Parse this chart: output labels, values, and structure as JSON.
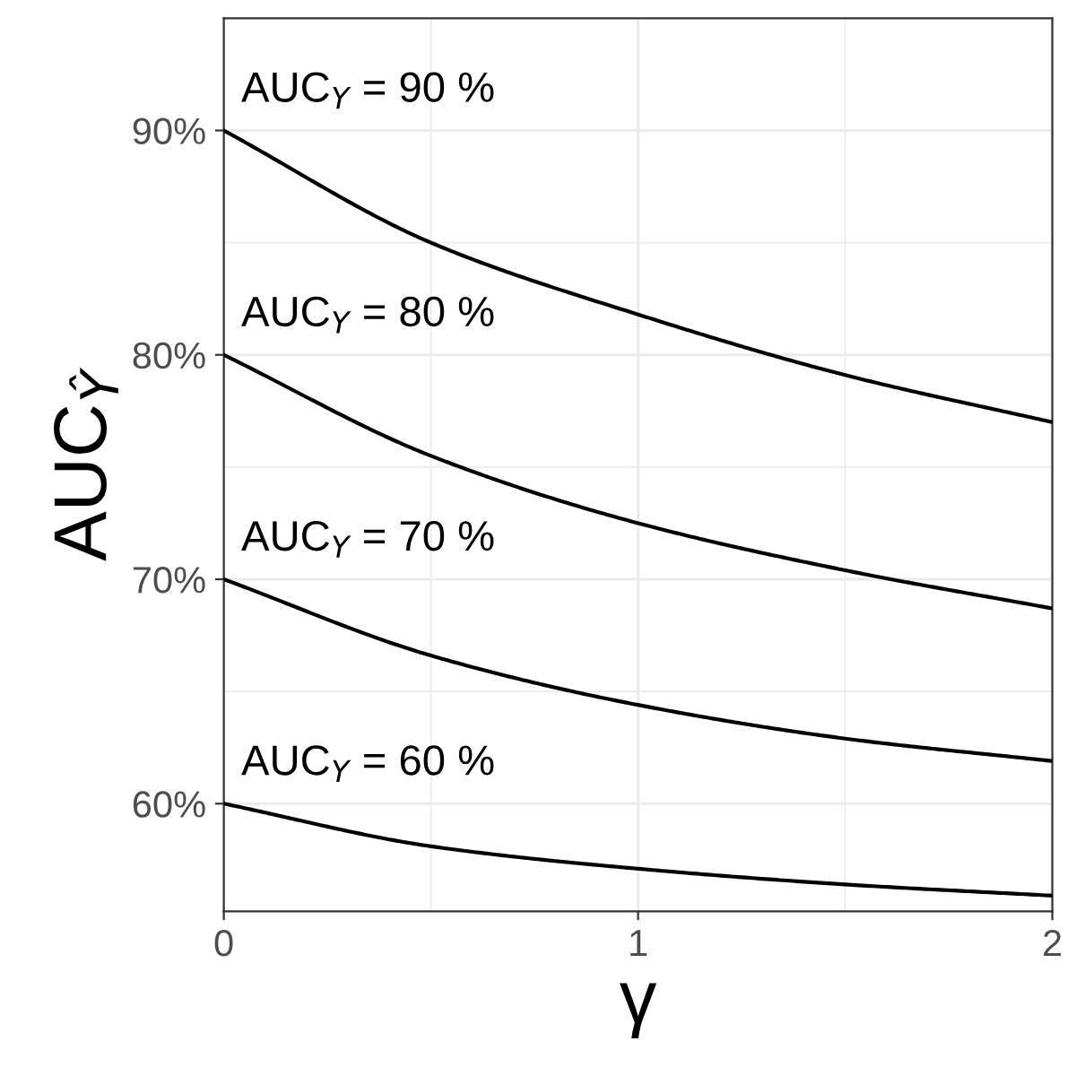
{
  "chart_data": {
    "type": "line",
    "xlabel": "γ",
    "ylabel": "AUC$_{Ŷ}$",
    "x": [
      0,
      0.5,
      1,
      1.5,
      2
    ],
    "series": [
      {
        "name": "AUC$_{Y}$ = 90 %",
        "color": "#000000",
        "values": [
          90,
          85.0,
          81.8,
          79.1,
          77.0
        ]
      },
      {
        "name": "AUC$_{Y}$ = 80 %",
        "color": "#000000",
        "values": [
          80,
          75.5,
          72.5,
          70.4,
          68.7
        ]
      },
      {
        "name": "AUC$_{Y}$ = 70 %",
        "color": "#000000",
        "values": [
          70,
          66.6,
          64.4,
          62.9,
          61.9
        ]
      },
      {
        "name": "AUC$_{Y}$ = 60 %",
        "color": "#000000",
        "values": [
          60,
          58.1,
          57.1,
          56.4,
          55.9
        ]
      }
    ],
    "xlim": [
      0,
      2
    ],
    "ylim": [
      55.2,
      95
    ],
    "xticks": [
      0,
      {
        "value": 0.5,
        "label": null
      },
      1,
      {
        "value": 1.5,
        "label": null
      },
      2
    ],
    "yticks": [
      {
        "value": 60,
        "label": "60%"
      },
      {
        "value": 65,
        "label": null
      },
      {
        "value": 70,
        "label": "70%"
      },
      {
        "value": 75,
        "label": null
      },
      {
        "value": 80,
        "label": "80%"
      },
      {
        "value": 85,
        "label": null
      },
      {
        "value": 90,
        "label": "90%"
      }
    ],
    "grid": true,
    "line_style": "solid"
  }
}
